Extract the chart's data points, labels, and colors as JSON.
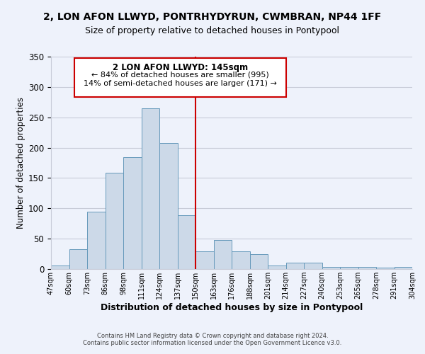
{
  "title": "2, LON AFON LLWYD, PONTRHYDYRUN, CWMBRAN, NP44 1FF",
  "subtitle": "Size of property relative to detached houses in Pontypool",
  "xlabel": "Distribution of detached houses by size in Pontypool",
  "ylabel": "Number of detached properties",
  "bar_color": "#ccd9e8",
  "bar_edge_color": "#6699bb",
  "background_color": "#eef2fb",
  "grid_color": "#c8ccd8",
  "bin_labels": [
    "47sqm",
    "60sqm",
    "73sqm",
    "86sqm",
    "98sqm",
    "111sqm",
    "124sqm",
    "137sqm",
    "150sqm",
    "163sqm",
    "176sqm",
    "188sqm",
    "201sqm",
    "214sqm",
    "227sqm",
    "240sqm",
    "253sqm",
    "265sqm",
    "278sqm",
    "291sqm",
    "304sqm"
  ],
  "bar_heights": [
    6,
    33,
    95,
    159,
    184,
    265,
    208,
    89,
    29,
    48,
    29,
    24,
    6,
    10,
    10,
    4,
    3,
    4,
    2,
    3
  ],
  "ylim": [
    0,
    350
  ],
  "yticks": [
    0,
    50,
    100,
    150,
    200,
    250,
    300,
    350
  ],
  "vline_x": 8,
  "vline_color": "#cc0000",
  "annotation_title": "2 LON AFON LLWYD: 145sqm",
  "annotation_line1": "← 84% of detached houses are smaller (995)",
  "annotation_line2": "14% of semi-detached houses are larger (171) →",
  "annotation_box_color": "#cc0000",
  "footer1": "Contains HM Land Registry data © Crown copyright and database right 2024.",
  "footer2": "Contains public sector information licensed under the Open Government Licence v3.0."
}
